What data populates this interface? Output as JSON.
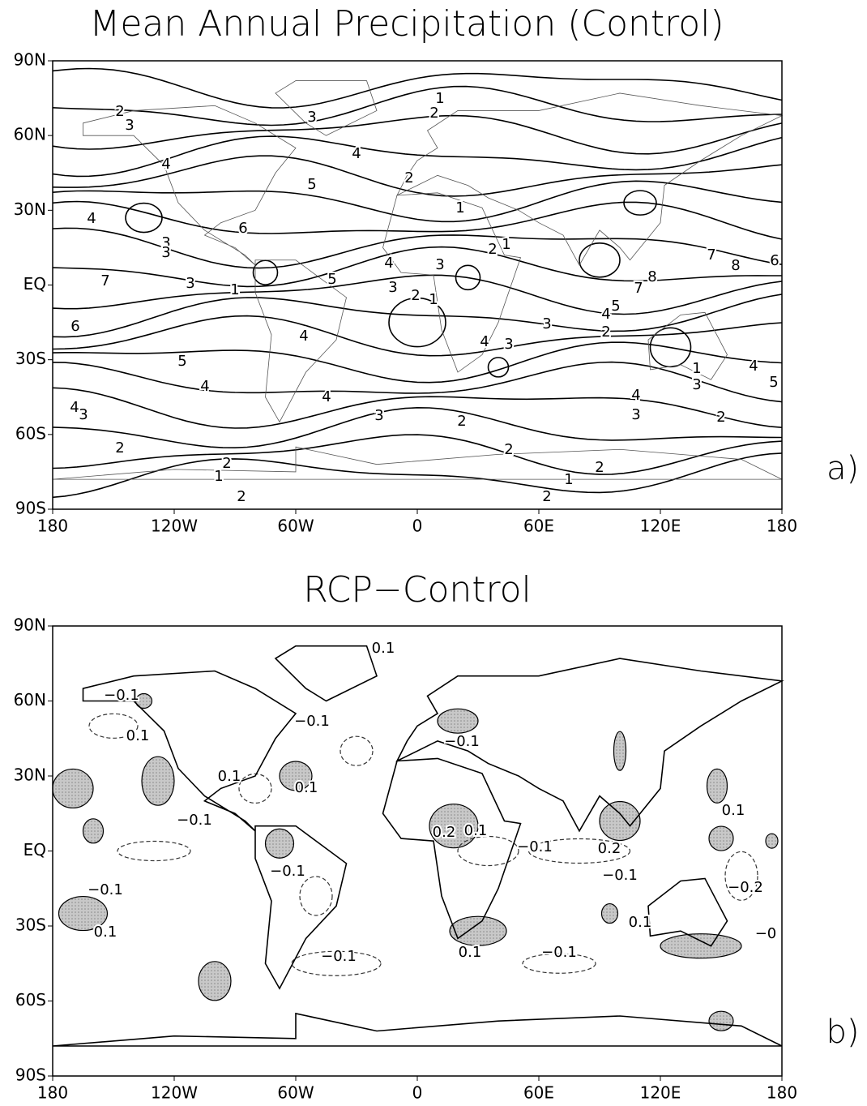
{
  "panels": [
    {
      "title": "Mean Annual Precipitation (Control)",
      "panel_label": "a)",
      "contour_labels": [
        "1",
        "2",
        "2",
        "3",
        "3",
        "4",
        "4",
        "5",
        "2",
        "1",
        "4",
        "6",
        "3",
        "3",
        "2",
        "1",
        "4",
        "3",
        "7",
        "8",
        "6",
        "7",
        "3",
        "1",
        "5",
        "3",
        "2",
        "1",
        "8",
        "7",
        "5",
        "4",
        "3",
        "2",
        "6",
        "4",
        "4",
        "3",
        "5",
        "1",
        "4",
        "3",
        "5",
        "4",
        "4",
        "4",
        "4",
        "3",
        "3",
        "2",
        "3",
        "2",
        "2",
        "2",
        "2",
        "1",
        "2",
        "1",
        "2",
        "2"
      ]
    },
    {
      "title": "RCP−Control",
      "panel_label": "b)",
      "contour_labels": [
        "0.1",
        "−0.1",
        "−0.1",
        "0.1",
        "−0.1",
        "0.1",
        "0.1",
        "−0.1",
        "0.1",
        "0.2",
        "0.1",
        "−0.1",
        "0.2",
        "−0.1",
        "−0.1",
        "−0.1",
        "−0.2",
        "0.1",
        "0.1",
        "−0",
        "0.1",
        "−0.1",
        "−0.1"
      ]
    }
  ],
  "axes": {
    "x_labels": [
      "180",
      "120W",
      "60W",
      "0",
      "60E",
      "120E",
      "180"
    ],
    "y_labels": [
      "90N",
      "60N",
      "30N",
      "EQ",
      "30S",
      "60S",
      "90S"
    ]
  }
}
